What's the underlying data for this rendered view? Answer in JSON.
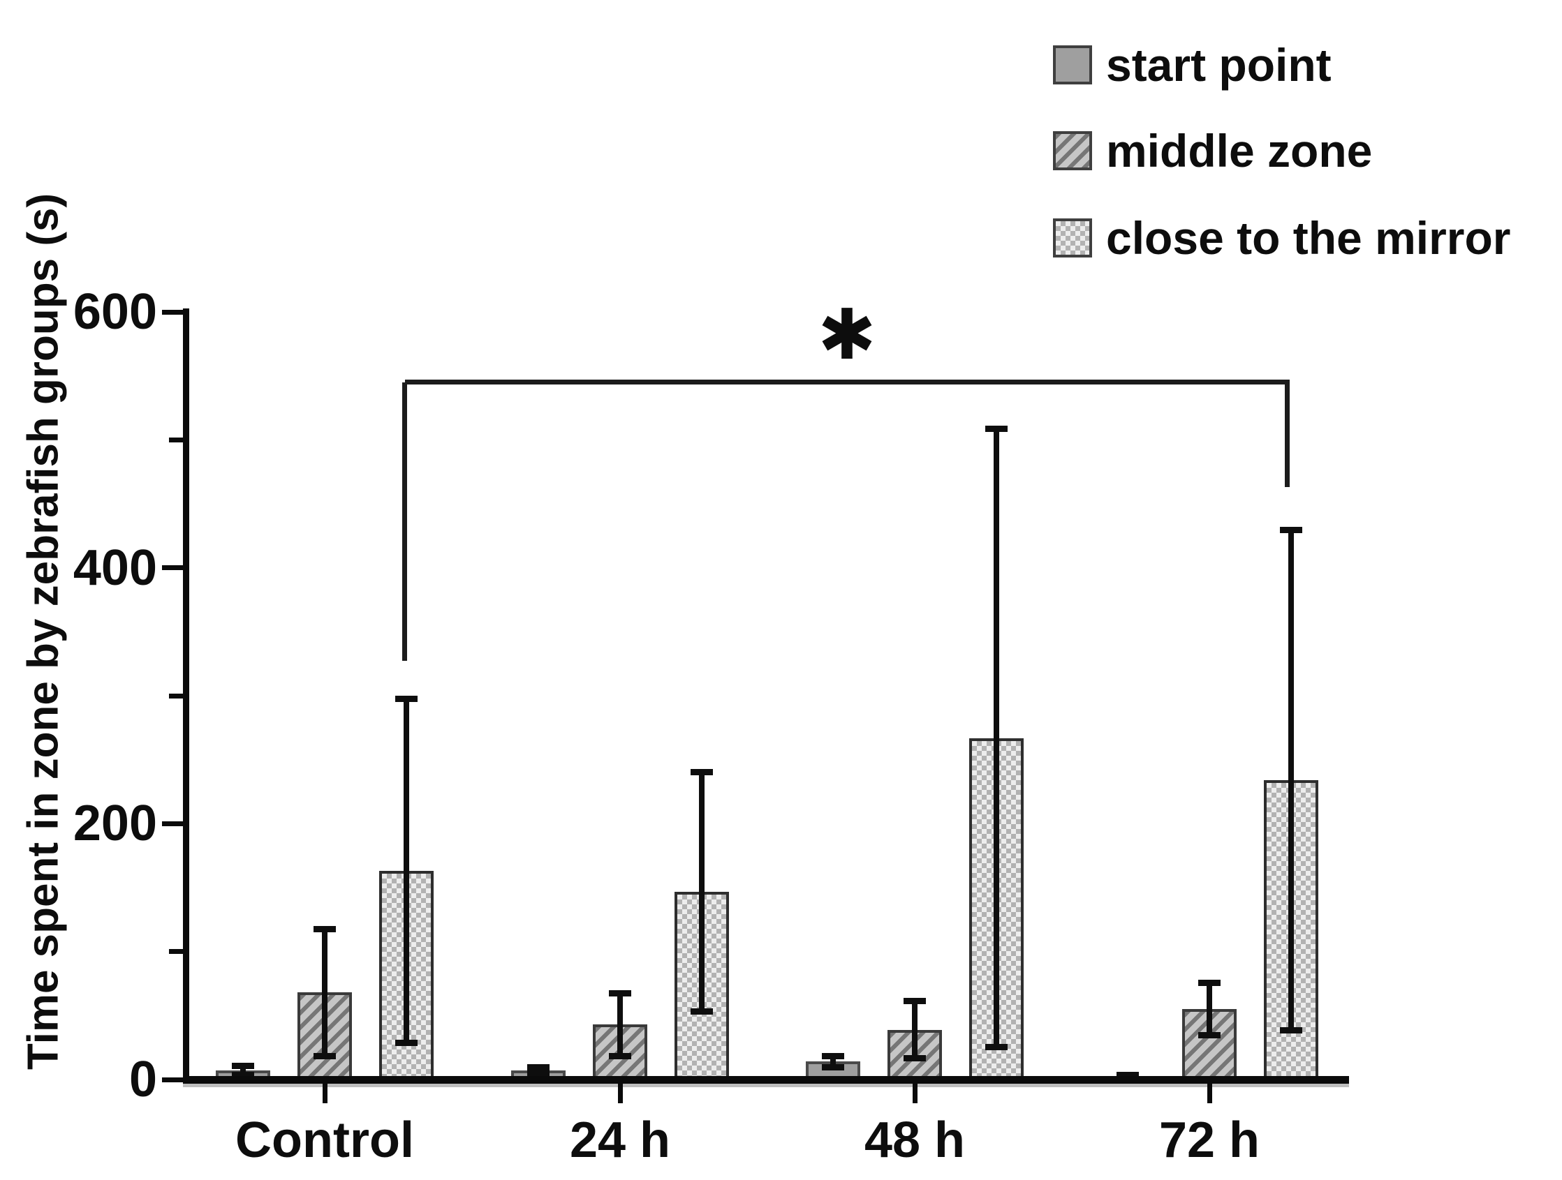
{
  "chart_data": {
    "type": "bar",
    "title": "",
    "xlabel": "",
    "ylabel": "Time spent in zone by zebrafish groups (s)",
    "ylim": [
      0,
      600
    ],
    "yticks_major": [
      0,
      200,
      400,
      600
    ],
    "yticks_minor": [
      100,
      300,
      500
    ],
    "grid": false,
    "legend_position": "top-right",
    "error_bars": "symmetric, black with caps",
    "categories": [
      "Control",
      "24 h",
      "48 h",
      "72 h"
    ],
    "series": [
      {
        "name": "start point",
        "pattern": "solid",
        "fill_color": "#9f9f9f",
        "values": [
          7,
          7,
          14,
          2
        ],
        "errors": [
          6,
          5,
          7,
          4
        ]
      },
      {
        "name": "middle zone",
        "pattern": "diagonal-hatch",
        "fill_color": "#c6c6c6",
        "values": [
          68,
          43,
          39,
          55
        ],
        "errors": [
          52,
          27,
          25,
          23
        ]
      },
      {
        "name": "close to the mirror",
        "pattern": "checker",
        "fill_color": "#ededed",
        "values": [
          163,
          147,
          267,
          234
        ],
        "errors": [
          137,
          96,
          244,
          198
        ]
      }
    ],
    "significance": {
      "label": "✱",
      "series": "close to the mirror",
      "from_category": "Control",
      "to_category": "72 h"
    }
  },
  "colors": {
    "axis": "#0b0b0b",
    "error_bar": "#0e0e0e",
    "text": "#0d0d0d",
    "background": "#ffffff"
  }
}
